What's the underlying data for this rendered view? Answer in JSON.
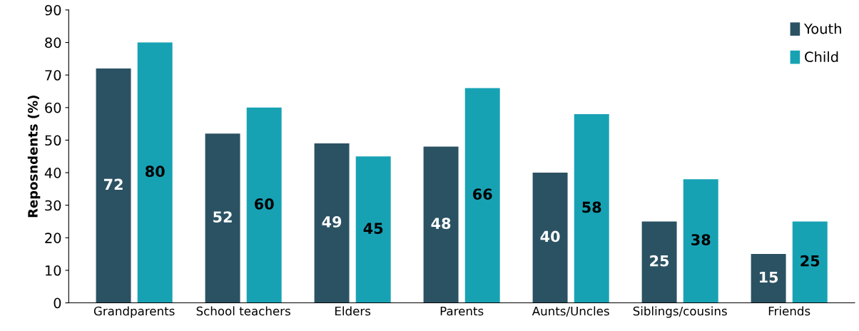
{
  "chart_data": {
    "type": "bar",
    "ylabel": "Reposndents (%)",
    "categories": [
      "Grandparents",
      "School teachers",
      "Elders",
      "Parents",
      "Aunts/Uncles",
      "Siblings/cousins",
      "Friends"
    ],
    "series": [
      {
        "name": "Youth",
        "color": "#2b5263",
        "values": [
          72,
          52,
          49,
          48,
          40,
          25,
          15
        ]
      },
      {
        "name": "Child",
        "color": "#17a2b4",
        "values": [
          80,
          60,
          45,
          66,
          58,
          38,
          25
        ]
      }
    ],
    "ylim": [
      0,
      90
    ],
    "yticks": [
      0,
      10,
      20,
      30,
      40,
      50,
      60,
      70,
      80,
      90
    ],
    "data_labels": true,
    "grid": false,
    "legend": "top right"
  }
}
